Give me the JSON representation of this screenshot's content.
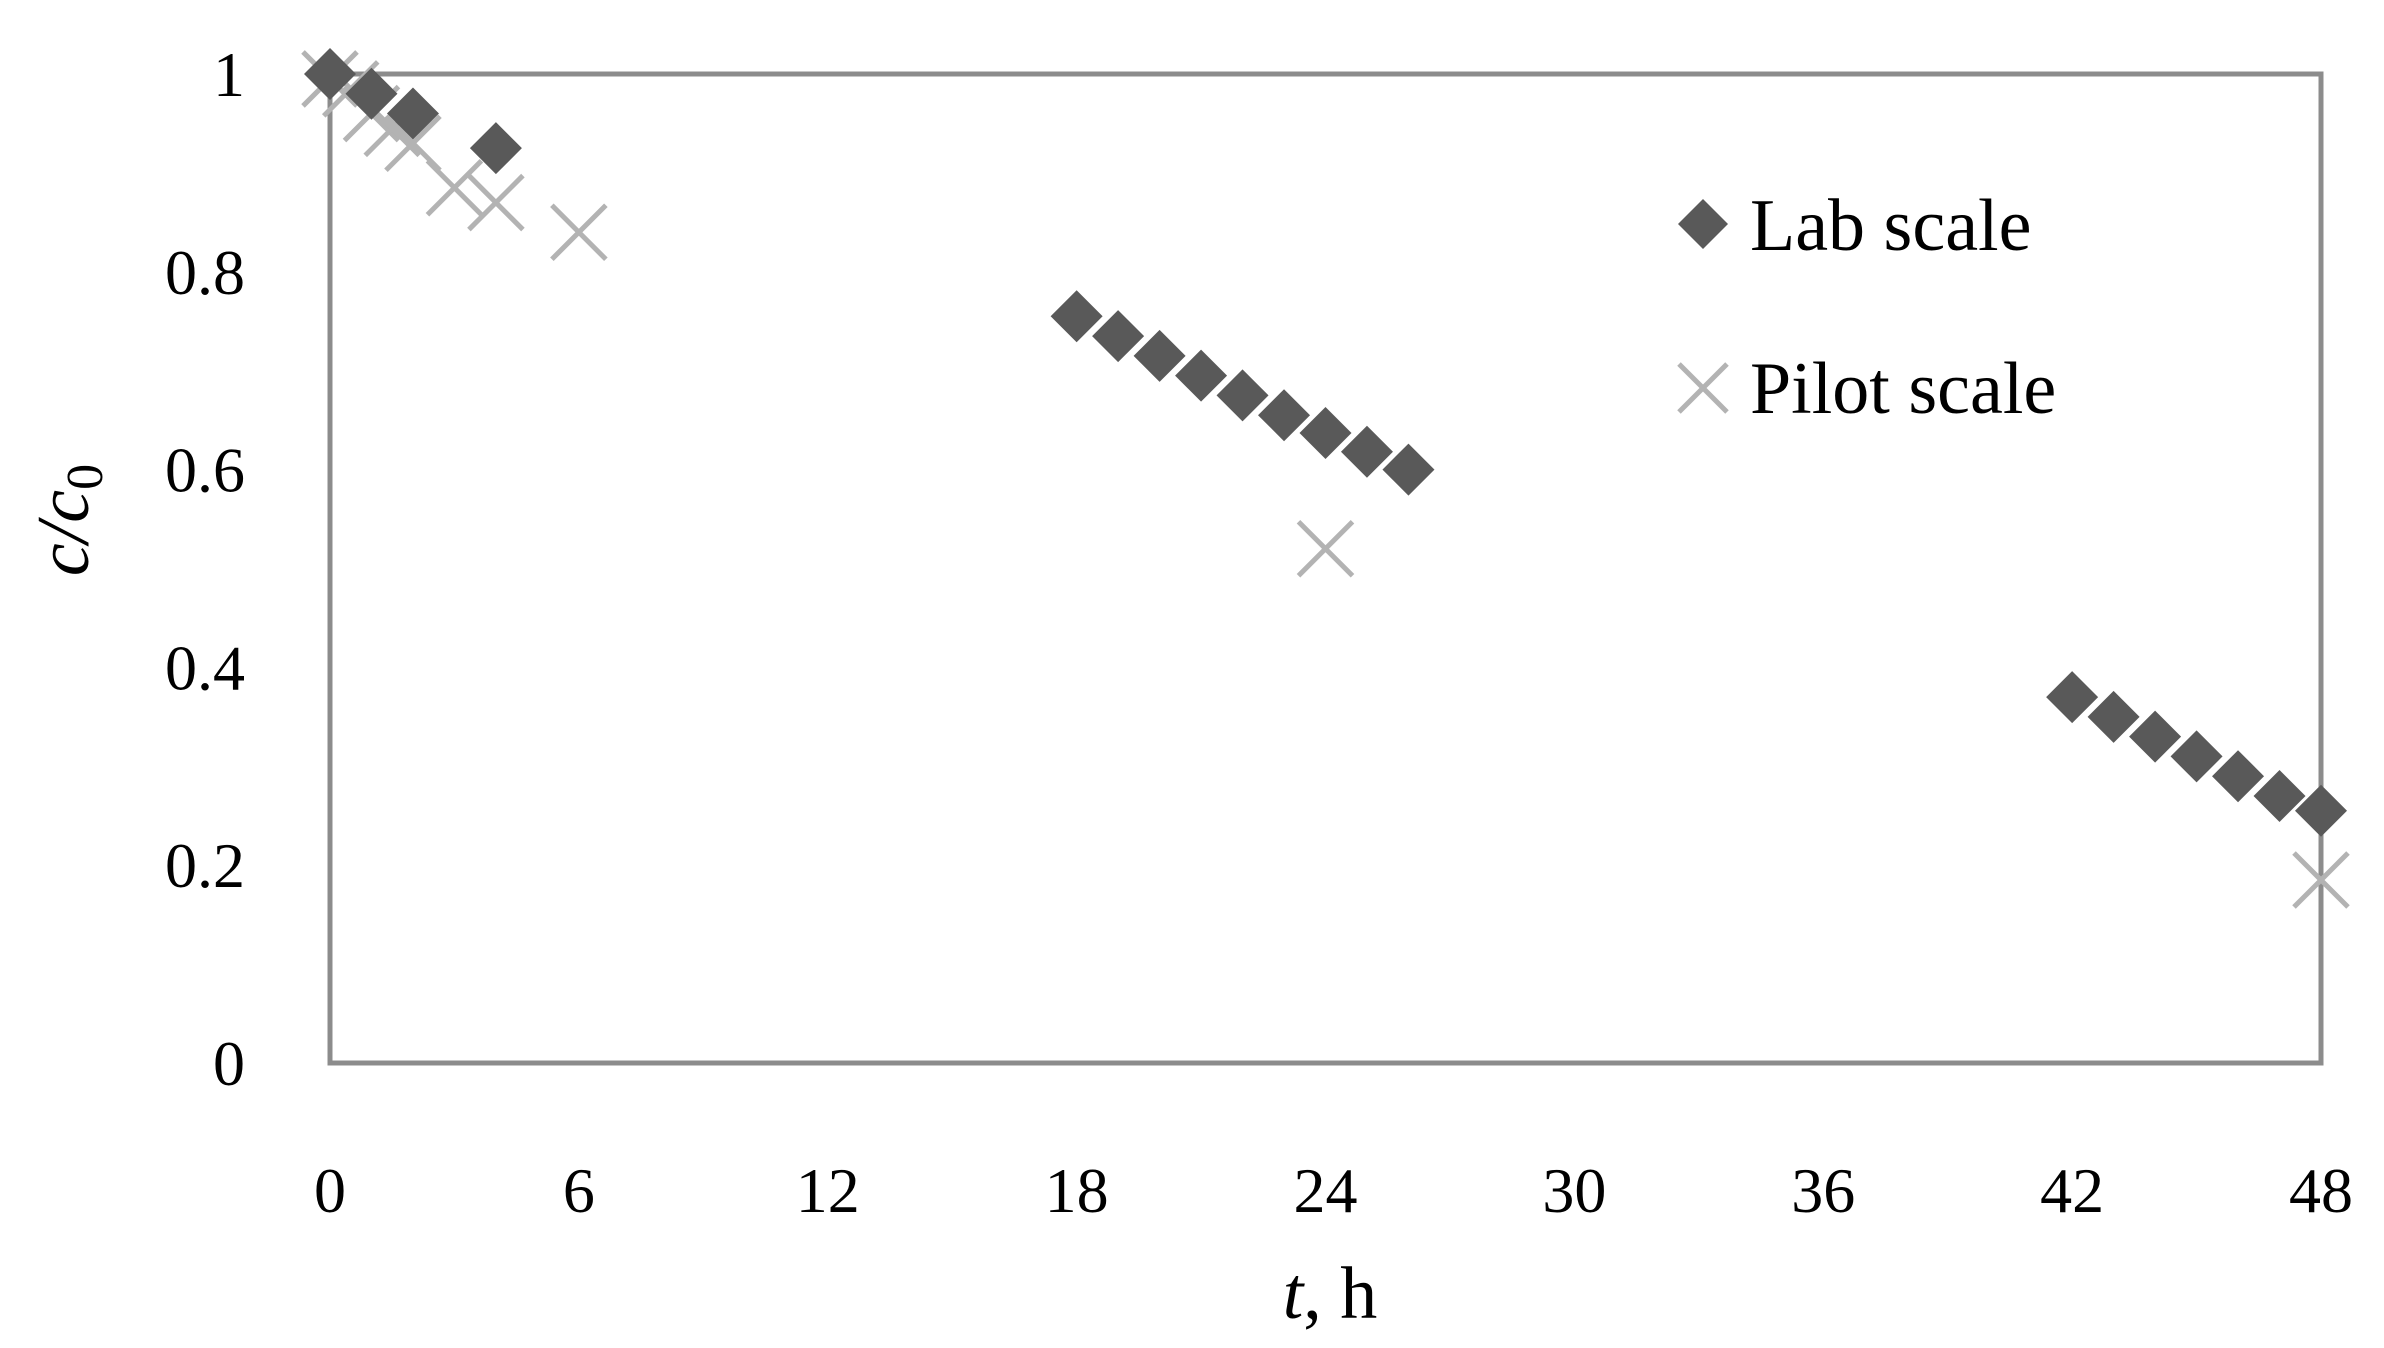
{
  "chart_data": {
    "type": "scatter",
    "title": "",
    "xlabel": "t, h",
    "ylabel": "c/c0",
    "xlabel_parts": {
      "var": "t",
      "rest": ", h"
    },
    "ylabel_parts": {
      "var": "c/c",
      "sub": "0"
    },
    "xlim": [
      0,
      48
    ],
    "ylim": [
      0,
      1
    ],
    "xticks": [
      "0",
      "6",
      "12",
      "18",
      "24",
      "30",
      "36",
      "42",
      "48"
    ],
    "yticks": [
      "0",
      "0.2",
      "0.4",
      "0.6",
      "0.8",
      "1"
    ],
    "grid": false,
    "legend": "top-right inside plot",
    "colors": {
      "lab": "#595959",
      "pilot": "#b3b3b3",
      "frame": "#8c8c8c"
    },
    "series": [
      {
        "name": "Lab scale",
        "marker": "diamond",
        "points": [
          [
            0,
            1.0
          ],
          [
            1,
            0.98
          ],
          [
            2,
            0.96
          ],
          [
            4,
            0.925
          ],
          [
            18,
            0.755
          ],
          [
            19,
            0.735
          ],
          [
            20,
            0.715
          ],
          [
            21,
            0.695
          ],
          [
            22,
            0.675
          ],
          [
            23,
            0.655
          ],
          [
            24,
            0.637
          ],
          [
            25,
            0.618
          ],
          [
            26,
            0.6
          ],
          [
            42,
            0.37
          ],
          [
            43,
            0.35
          ],
          [
            44,
            0.33
          ],
          [
            45,
            0.31
          ],
          [
            46,
            0.29
          ],
          [
            47,
            0.27
          ],
          [
            48,
            0.255
          ]
        ]
      },
      {
        "name": "Pilot scale",
        "marker": "x",
        "points": [
          [
            0,
            0.995
          ],
          [
            0.5,
            0.985
          ],
          [
            1,
            0.96
          ],
          [
            1.5,
            0.945
          ],
          [
            2,
            0.93
          ],
          [
            3,
            0.885
          ],
          [
            4,
            0.87
          ],
          [
            6,
            0.84
          ],
          [
            24,
            0.52
          ],
          [
            48,
            0.185
          ]
        ]
      }
    ]
  }
}
